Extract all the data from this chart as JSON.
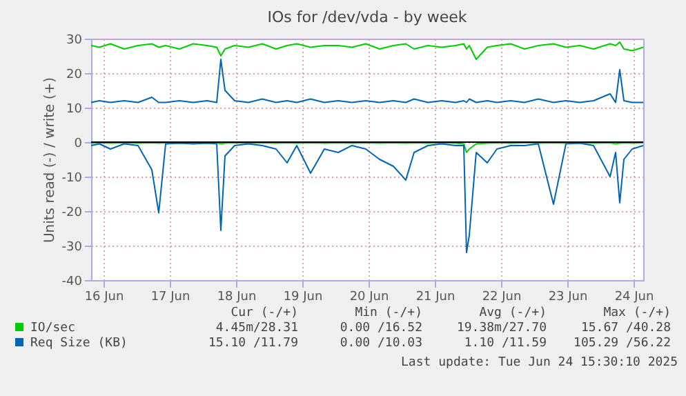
{
  "chart_data": {
    "type": "line",
    "title": "IOs for /dev/vda - by week",
    "ylabel": "Units read (-) / write (+)",
    "x": [
      "2025-06-16T07:30",
      "2025-06-16T10:30",
      "2025-06-16T14:30",
      "2025-06-16T19:30",
      "2025-06-17T00:30",
      "2025-06-17T05:30",
      "2025-06-17T08:00",
      "2025-06-17T10:30",
      "2025-06-17T15:30",
      "2025-06-17T20:30",
      "2025-06-18T01:30",
      "2025-06-18T05:00",
      "2025-06-18T06:30",
      "2025-06-18T08:00",
      "2025-06-18T11:30",
      "2025-06-18T16:30",
      "2025-06-18T21:30",
      "2025-06-19T02:30",
      "2025-06-19T06:30",
      "2025-06-19T10:00",
      "2025-06-19T15:00",
      "2025-06-19T20:00",
      "2025-06-20T01:00",
      "2025-06-20T06:00",
      "2025-06-20T11:00",
      "2025-06-20T16:00",
      "2025-06-20T21:00",
      "2025-06-21T01:30",
      "2025-06-21T04:30",
      "2025-06-21T09:30",
      "2025-06-21T14:30",
      "2025-06-21T19:30",
      "2025-06-21T22:30",
      "2025-06-21T23:30",
      "2025-06-22T00:30",
      "2025-06-22T03:00",
      "2025-06-22T07:00",
      "2025-06-22T10:30",
      "2025-06-22T15:30",
      "2025-06-22T20:30",
      "2025-06-23T01:30",
      "2025-06-23T07:00",
      "2025-06-23T11:30",
      "2025-06-23T16:30",
      "2025-06-23T21:30",
      "2025-06-24T03:30",
      "2025-06-24T05:30",
      "2025-06-24T07:00",
      "2025-06-24T08:30",
      "2025-06-24T11:30",
      "2025-06-24T15:30"
    ],
    "series": [
      {
        "name": "IO/sec",
        "color": "#00cc00",
        "values": [
          28,
          27.5,
          28.5,
          27,
          28,
          28.5,
          27.5,
          28,
          27,
          28.5,
          28,
          27.5,
          25,
          27,
          28,
          27.5,
          28.5,
          27,
          28,
          28.5,
          27.5,
          28,
          28,
          27.5,
          28.5,
          27,
          28,
          28.5,
          27,
          28,
          27.5,
          28,
          28.5,
          27,
          28,
          24,
          27.5,
          28,
          28.5,
          27,
          28,
          28.5,
          27.5,
          28,
          27,
          28.5,
          28,
          29,
          27,
          26.5,
          27.5
        ]
      },
      {
        "color": "#00cc00",
        "values": [
          -0.3,
          -0.2,
          -0.3,
          -0.2,
          -0.3,
          -0.2,
          -0.3,
          -0.2,
          -0.3,
          -0.2,
          -0.3,
          -0.2,
          -0.5,
          -0.3,
          -0.2,
          -0.3,
          -0.2,
          -0.3,
          -0.2,
          -0.3,
          -0.2,
          -0.3,
          -0.2,
          -0.3,
          -0.2,
          -0.3,
          -0.2,
          -0.3,
          -0.2,
          -0.3,
          -0.2,
          -0.3,
          -0.5,
          -3,
          -2,
          -0.5,
          -0.3,
          -0.2,
          -0.3,
          -0.2,
          -0.3,
          -0.2,
          -0.3,
          -0.2,
          -0.3,
          -0.2,
          -0.5,
          -0.3,
          -0.2,
          -0.3,
          -0.2
        ]
      },
      {
        "name": "Req Size (KB)",
        "color": "#0066b3",
        "values": [
          11.5,
          12,
          11.5,
          12,
          11.5,
          13,
          11.5,
          11.5,
          12,
          11.5,
          12,
          11.5,
          24,
          15,
          12,
          11.5,
          12.5,
          11.5,
          12,
          11.5,
          12.5,
          11.5,
          12,
          11.5,
          12,
          11.5,
          12,
          11.5,
          12.5,
          11.5,
          12,
          11.5,
          12,
          11.5,
          12.5,
          11.5,
          12,
          11.5,
          12,
          11.5,
          12.5,
          11.5,
          12,
          11.5,
          12,
          14,
          11.5,
          21,
          12,
          11.5,
          11.5
        ]
      },
      {
        "color": "#0066b3",
        "values": [
          -1,
          -0.5,
          -2,
          -0.5,
          -1,
          -8,
          -20.5,
          -0.5,
          -0.3,
          -0.5,
          -0.3,
          -0.5,
          -25.6,
          -4,
          -1,
          -0.5,
          -1,
          -2,
          -6,
          -1,
          -9,
          -2,
          -3,
          -1,
          -2,
          -5,
          -7,
          -11,
          -3,
          -1,
          -0.5,
          -1,
          -1,
          -32,
          -27,
          -3,
          -6,
          -2,
          -1,
          -1,
          -0.5,
          -18,
          -0.5,
          -0.3,
          -1,
          -10,
          -3,
          -17.6,
          -5,
          -2,
          -1
        ]
      }
    ],
    "xlim": [
      "2025-06-16T07:30",
      "2025-06-24T15:30"
    ],
    "xticks": [
      {
        "value": "2025-06-16T12:00",
        "label": "16 Jun"
      },
      {
        "value": "2025-06-17T12:00",
        "label": "17 Jun"
      },
      {
        "value": "2025-06-18T12:00",
        "label": "18 Jun"
      },
      {
        "value": "2025-06-19T12:00",
        "label": "19 Jun"
      },
      {
        "value": "2025-06-20T12:00",
        "label": "20 Jun"
      },
      {
        "value": "2025-06-21T12:00",
        "label": "21 Jun"
      },
      {
        "value": "2025-06-22T12:00",
        "label": "22 Jun"
      },
      {
        "value": "2025-06-23T12:00",
        "label": "23 Jun"
      },
      {
        "value": "2025-06-24T12:00",
        "label": "24 Jun"
      }
    ],
    "ylim": [
      -40,
      30
    ],
    "yticks": [
      -40,
      -30,
      -20,
      -10,
      0,
      10,
      20,
      30
    ],
    "grid": true,
    "legend": "bottom",
    "annotations": [
      "Cur (-/+)",
      "Min (-/+)",
      "Avg (-/+)",
      "Max (-/+)",
      "4.45m/28.31",
      "0.00 /16.52",
      "19.38m/27.70",
      "15.67 /40.28",
      "15.10 /11.79",
      "0.00 /10.03",
      "1.10 /11.59",
      "105.29 /56.22",
      "Last update: Tue Jun 24 15:30:10 2025"
    ]
  }
}
